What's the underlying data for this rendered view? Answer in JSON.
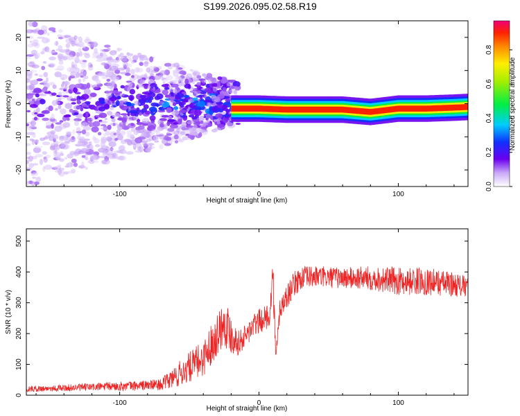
{
  "title": "S199.2026.095.02.58.R19",
  "colors": {
    "background": "#ffffff",
    "axis": "#000000",
    "snr_line": "#ee2222",
    "spectrogram_weak": "#c9b3f5",
    "spectrogram_mid": "#5a00e0",
    "spectrogram_ridge": "#e8222a"
  },
  "chart_data": [
    {
      "type": "heatmap",
      "title": "",
      "xlabel": "Height of straight line (km)",
      "ylabel": "Frequency (Hz)",
      "xlim": [
        -167,
        150
      ],
      "ylim": [
        -25,
        25
      ],
      "xticks": [
        -100,
        0,
        100
      ],
      "xtick_labels": [
        "-100",
        "0",
        "100"
      ],
      "yticks": [
        -20,
        -10,
        0,
        10,
        20
      ],
      "ytick_labels": [
        "-20",
        "-10",
        "0",
        "10",
        "20"
      ],
      "ridge": {
        "description_points_x": [
          -20,
          -10,
          0,
          20,
          40,
          60,
          80,
          90,
          100,
          120,
          140,
          150
        ],
        "description_points_freq": [
          -1.5,
          -1.5,
          -1.5,
          -1.8,
          -1.8,
          -1.8,
          -2.5,
          -2.0,
          -1.5,
          -1.5,
          -1.2,
          -1.0
        ]
      },
      "colorbar": {
        "label": "Normalized spectral amplitude",
        "range": [
          0.0,
          0.97
        ],
        "ticks": [
          0.0,
          0.2,
          0.4,
          0.6,
          0.8
        ],
        "tick_labels": [
          "0.0",
          "0.2",
          "0.4",
          "0.6",
          "0.8"
        ],
        "stops": [
          {
            "v": 0.0,
            "color": "#ffffff"
          },
          {
            "v": 0.08,
            "color": "#c9a9f7"
          },
          {
            "v": 0.16,
            "color": "#6a00ee"
          },
          {
            "v": 0.26,
            "color": "#1030ff"
          },
          {
            "v": 0.36,
            "color": "#00ccff"
          },
          {
            "v": 0.48,
            "color": "#00ee44"
          },
          {
            "v": 0.62,
            "color": "#aaee00"
          },
          {
            "v": 0.72,
            "color": "#ffee00"
          },
          {
            "v": 0.82,
            "color": "#ff8800"
          },
          {
            "v": 0.9,
            "color": "#ff2200"
          },
          {
            "v": 0.97,
            "color": "#ee0077"
          }
        ]
      }
    },
    {
      "type": "line",
      "title": "",
      "xlabel": "Height of straight line (km)",
      "ylabel": "SNR (10 * v/v)",
      "xlim": [
        -167,
        150
      ],
      "ylim": [
        0,
        540
      ],
      "xticks": [
        -100,
        0,
        100
      ],
      "xtick_labels": [
        "-100",
        "0",
        "100"
      ],
      "yticks": [
        0,
        100,
        200,
        300,
        400,
        500
      ],
      "ytick_labels": [
        "0",
        "100",
        "200",
        "300",
        "400",
        "500"
      ],
      "series": [
        {
          "name": "SNR",
          "x": [
            -167,
            -150,
            -130,
            -110,
            -90,
            -70,
            -60,
            -50,
            -40,
            -30,
            -25,
            -20,
            -15,
            -10,
            -5,
            0,
            5,
            8,
            10,
            12,
            15,
            20,
            25,
            30,
            40,
            60,
            80,
            100,
            120,
            140,
            150
          ],
          "values": [
            20,
            22,
            25,
            28,
            30,
            35,
            60,
            90,
            120,
            200,
            240,
            200,
            170,
            190,
            220,
            240,
            250,
            270,
            400,
            110,
            280,
            320,
            360,
            380,
            385,
            380,
            380,
            370,
            370,
            360,
            350
          ],
          "noise": [
            10,
            10,
            12,
            14,
            16,
            18,
            40,
            50,
            60,
            70,
            80,
            70,
            40,
            40,
            40,
            40,
            40,
            40,
            60,
            40,
            40,
            40,
            40,
            40,
            35,
            35,
            40,
            45,
            45,
            40,
            35
          ]
        }
      ]
    }
  ]
}
